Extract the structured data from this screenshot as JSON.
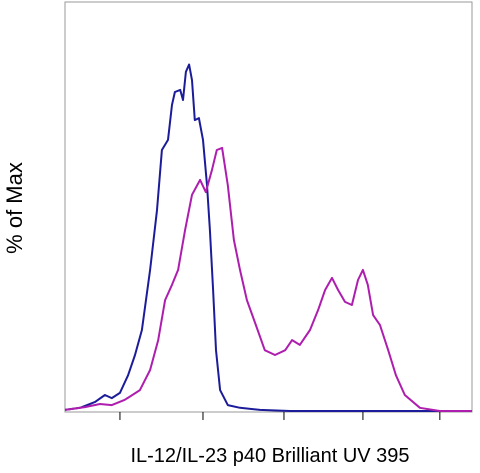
{
  "chart_data": {
    "type": "line",
    "xlabel": "IL-12/IL-23 p40 Brilliant UV 395",
    "ylabel": "% of Max",
    "xlim": [
      0,
      100
    ],
    "ylim": [
      0,
      118
    ],
    "xticks": [
      13.5,
      33.9,
      53.8,
      73.2,
      92.1
    ],
    "series": [
      {
        "color": "#1c1c9a",
        "x": [
          0,
          3.7,
          7.4,
          9.8,
          11.5,
          13.5,
          15.5,
          17.2,
          18.9,
          20.9,
          22.6,
          23.8,
          25.3,
          26.3,
          27.0,
          28.3,
          29.0,
          29.7,
          30.5,
          31.2,
          31.9,
          32.9,
          33.9,
          34.9,
          35.6,
          36.4,
          37.1,
          38.1,
          40.0,
          43.0,
          47.9,
          55.3,
          100
        ],
        "values": [
          0.6,
          1.2,
          2.9,
          4.9,
          4.0,
          5.5,
          10.6,
          16.4,
          23.6,
          40.9,
          58.1,
          75.4,
          78.3,
          88.4,
          92.1,
          92.7,
          89.8,
          97.9,
          100,
          95.5,
          84.0,
          84.6,
          78.3,
          65.3,
          52.4,
          35.1,
          17.8,
          6.3,
          2.0,
          1.2,
          0.6,
          0.3,
          0.3
        ]
      },
      {
        "color": "#ae1eae",
        "x": [
          0,
          4.9,
          8.6,
          11.5,
          14.7,
          18.4,
          20.9,
          22.9,
          24.6,
          26.3,
          27.8,
          29.5,
          31.2,
          33.2,
          34.6,
          36.1,
          37.3,
          38.6,
          40.0,
          41.5,
          43.0,
          44.7,
          46.9,
          49.1,
          51.6,
          54.1,
          55.8,
          57.7,
          60.2,
          62.2,
          63.9,
          65.6,
          67.1,
          68.8,
          70.5,
          72.0,
          73.2,
          74.4,
          75.7,
          77.4,
          79.4,
          81.3,
          83.5,
          87.2,
          92.1,
          100
        ],
        "values": [
          0.6,
          1.4,
          2.3,
          2.0,
          3.5,
          6.3,
          12.1,
          20.7,
          32.2,
          36.6,
          40.9,
          52.4,
          62.5,
          66.8,
          63.3,
          69.6,
          75.4,
          76.0,
          65.3,
          49.5,
          40.9,
          32.2,
          25.0,
          17.8,
          16.4,
          17.8,
          20.7,
          19.3,
          23.6,
          29.4,
          35.1,
          38.6,
          35.1,
          31.7,
          30.8,
          38.0,
          40.9,
          36.6,
          27.9,
          25.0,
          17.8,
          10.6,
          4.9,
          1.2,
          0.3,
          0.3
        ]
      }
    ]
  }
}
